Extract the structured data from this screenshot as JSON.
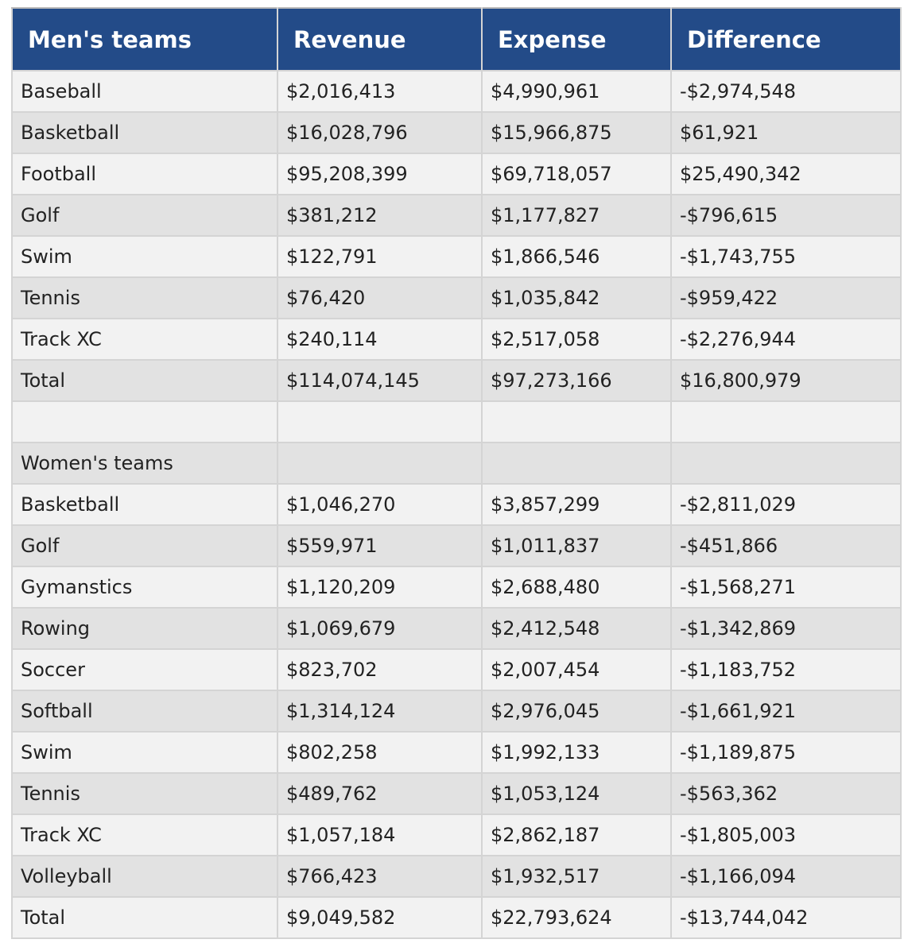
{
  "header": {
    "col1": "Men's teams",
    "col2": "Revenue",
    "col3": "Expense",
    "col4": "Difference"
  },
  "rows": [
    {
      "team": "Baseball",
      "revenue": "$2,016,413",
      "expense": "$4,990,961",
      "difference": "-$2,974,548"
    },
    {
      "team": "Basketball",
      "revenue": "$16,028,796",
      "expense": "$15,966,875",
      "difference": "$61,921"
    },
    {
      "team": "Football",
      "revenue": "$95,208,399",
      "expense": "$69,718,057",
      "difference": "$25,490,342"
    },
    {
      "team": "Golf",
      "revenue": "$381,212",
      "expense": "$1,177,827",
      "difference": "-$796,615"
    },
    {
      "team": "Swim",
      "revenue": "$122,791",
      "expense": "$1,866,546",
      "difference": "-$1,743,755"
    },
    {
      "team": "Tennis",
      "revenue": "$76,420",
      "expense": "$1,035,842",
      "difference": "-$959,422"
    },
    {
      "team": "Track XC",
      "revenue": "$240,114",
      "expense": "$2,517,058",
      "difference": "-$2,276,944"
    },
    {
      "team": "Total",
      "revenue": "$114,074,145",
      "expense": "$97,273,166",
      "difference": "$16,800,979"
    },
    {
      "team": "",
      "revenue": "",
      "expense": "",
      "difference": ""
    },
    {
      "team": "Women's teams",
      "revenue": "",
      "expense": "",
      "difference": ""
    },
    {
      "team": "Basketball",
      "revenue": "$1,046,270",
      "expense": "$3,857,299",
      "difference": "-$2,811,029"
    },
    {
      "team": "Golf",
      "revenue": "$559,971",
      "expense": "$1,011,837",
      "difference": "-$451,866"
    },
    {
      "team": "Gymanstics",
      "revenue": "$1,120,209",
      "expense": "$2,688,480",
      "difference": "-$1,568,271"
    },
    {
      "team": "Rowing",
      "revenue": "$1,069,679",
      "expense": "$2,412,548",
      "difference": "-$1,342,869"
    },
    {
      "team": "Soccer",
      "revenue": "$823,702",
      "expense": "$2,007,454",
      "difference": "-$1,183,752"
    },
    {
      "team": "Softball",
      "revenue": "$1,314,124",
      "expense": "$2,976,045",
      "difference": "-$1,661,921"
    },
    {
      "team": "Swim",
      "revenue": "$802,258",
      "expense": "$1,992,133",
      "difference": "-$1,189,875"
    },
    {
      "team": "Tennis",
      "revenue": "$489,762",
      "expense": "$1,053,124",
      "difference": "-$563,362"
    },
    {
      "team": "Track XC",
      "revenue": "$1,057,184",
      "expense": "$2,862,187",
      "difference": "-$1,805,003"
    },
    {
      "team": "Volleyball",
      "revenue": "$766,423",
      "expense": "$1,932,517",
      "difference": "-$1,166,094"
    },
    {
      "team": "Total",
      "revenue": "$9,049,582",
      "expense": "$22,793,624",
      "difference": "-$13,744,042"
    }
  ],
  "colors": {
    "header_bg": "#234b88",
    "row_light": "#f2f2f2",
    "row_dark": "#e2e2e2",
    "grid": "#d4d4d4"
  }
}
